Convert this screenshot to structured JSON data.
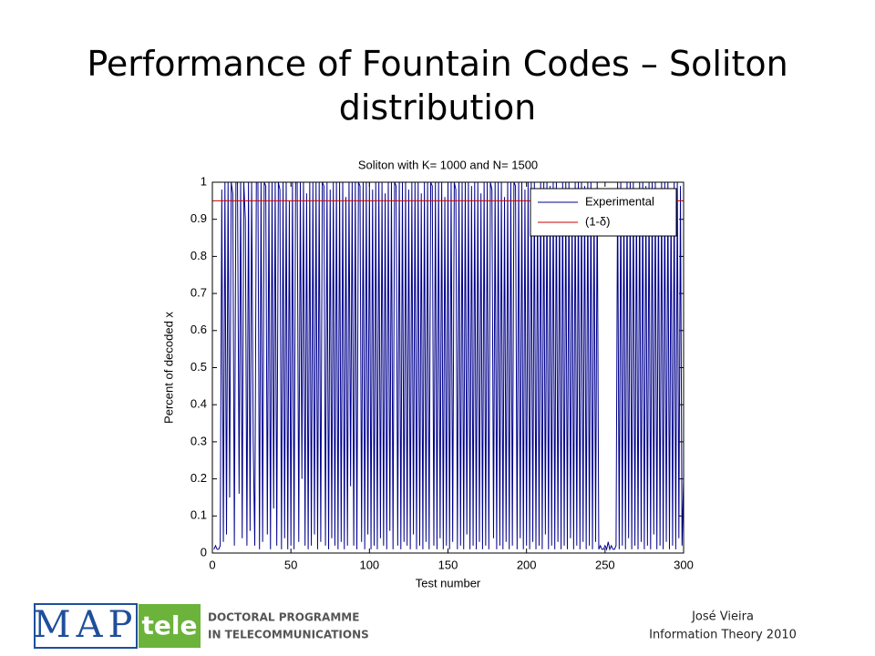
{
  "slide": {
    "title": "Performance of Fountain Codes – Soliton distribution",
    "author": "José Vieira",
    "course": "Information Theory 2010",
    "logo": {
      "map": "MAP",
      "tele": "tele",
      "line1": "DOCTORAL PROGRAMME",
      "line2": "IN TELECOMMUNICATIONS"
    }
  },
  "chart_data": {
    "type": "line",
    "title": "Soliton with K= 1000  and N= 1500",
    "x_label": "Test number",
    "y_label": "Percent of decoded x",
    "xlim": [
      0,
      300
    ],
    "xticks": [
      0,
      50,
      100,
      150,
      200,
      250,
      300
    ],
    "ylim": [
      0,
      1
    ],
    "yticks": [
      0,
      {
        "value": 0.1,
        "label": "0.1"
      },
      {
        "value": 0.2,
        "label": "0.2"
      },
      {
        "value": 0.3,
        "label": "0.3"
      },
      {
        "value": 0.4,
        "label": "0.4"
      },
      {
        "value": 0.5,
        "label": "0.5"
      },
      {
        "value": 0.6,
        "label": "0.6"
      },
      {
        "value": 0.7,
        "label": "0.7"
      },
      {
        "value": 0.8,
        "label": "0.8"
      },
      {
        "value": 0.9,
        "label": "0.9"
      },
      1
    ],
    "legend": "upper right",
    "series": [
      {
        "name": "Experimental",
        "color": "#00008b",
        "x": [
          1,
          2,
          3,
          4,
          5,
          6,
          7,
          8,
          9,
          10,
          11,
          12,
          13,
          14,
          15,
          16,
          17,
          18,
          19,
          20,
          21,
          22,
          23,
          24,
          25,
          26,
          27,
          28,
          29,
          30,
          31,
          32,
          33,
          34,
          35,
          36,
          37,
          38,
          39,
          40,
          41,
          42,
          43,
          44,
          45,
          46,
          47,
          48,
          49,
          50,
          51,
          52,
          53,
          54,
          55,
          56,
          57,
          58,
          59,
          60,
          61,
          62,
          63,
          64,
          65,
          66,
          67,
          68,
          69,
          70,
          71,
          72,
          73,
          74,
          75,
          76,
          77,
          78,
          79,
          80,
          81,
          82,
          83,
          84,
          85,
          86,
          87,
          88,
          89,
          90,
          91,
          92,
          93,
          94,
          95,
          96,
          97,
          98,
          99,
          100,
          101,
          102,
          103,
          104,
          105,
          106,
          107,
          108,
          109,
          110,
          111,
          112,
          113,
          114,
          115,
          116,
          117,
          118,
          119,
          120,
          121,
          122,
          123,
          124,
          125,
          126,
          127,
          128,
          129,
          130,
          131,
          132,
          133,
          134,
          135,
          136,
          137,
          138,
          139,
          140,
          141,
          142,
          143,
          144,
          145,
          146,
          147,
          148,
          149,
          150,
          151,
          152,
          153,
          154,
          155,
          156,
          157,
          158,
          159,
          160,
          161,
          162,
          163,
          164,
          165,
          166,
          167,
          168,
          169,
          170,
          171,
          172,
          173,
          174,
          175,
          176,
          177,
          178,
          179,
          180,
          181,
          182,
          183,
          184,
          185,
          186,
          187,
          188,
          189,
          190,
          191,
          192,
          193,
          194,
          195,
          196,
          197,
          198,
          199,
          200,
          201,
          202,
          203,
          204,
          205,
          206,
          207,
          208,
          209,
          210,
          211,
          212,
          213,
          214,
          215,
          216,
          217,
          218,
          219,
          220,
          221,
          222,
          223,
          224,
          225,
          226,
          227,
          228,
          229,
          230,
          231,
          232,
          233,
          234,
          235,
          236,
          237,
          238,
          239,
          240,
          241,
          242,
          243,
          244,
          245,
          246,
          247,
          248,
          249,
          250,
          251,
          252,
          253,
          254,
          255,
          256,
          257,
          258,
          259,
          260,
          261,
          262,
          263,
          264,
          265,
          266,
          267,
          268,
          269,
          270,
          271,
          272,
          273,
          274,
          275,
          276,
          277,
          278,
          279,
          280,
          281,
          282,
          283,
          284,
          285,
          286,
          287,
          288,
          289,
          290,
          291,
          292,
          293,
          294,
          295,
          296,
          297,
          298,
          299,
          300
        ],
        "values": [
          0.01,
          0.02,
          0.01,
          0.01,
          0.02,
          0.98,
          0.03,
          1,
          0.05,
          1,
          0.15,
          1,
          0.97,
          0.02,
          1,
          1,
          0.16,
          1,
          0.04,
          1,
          0.9,
          0.02,
          1,
          0.06,
          1,
          0.3,
          0.02,
          1,
          1,
          0.01,
          1,
          0.03,
          1,
          0.99,
          0.05,
          1,
          0.01,
          1,
          0.12,
          1,
          0.02,
          1,
          0.98,
          0.01,
          1,
          0.04,
          1,
          0.01,
          0.95,
          0.02,
          1,
          0.01,
          1,
          1,
          0.03,
          1,
          0.2,
          1,
          0.02,
          0.97,
          0.01,
          1,
          0.02,
          1,
          0.05,
          1,
          0.01,
          1,
          0.03,
          1,
          0.99,
          0.02,
          1,
          0.01,
          0.98,
          0.04,
          1,
          0.02,
          1,
          0.01,
          1,
          0.03,
          1,
          0.01,
          0.96,
          0.02,
          1,
          0.18,
          1,
          0.02,
          1,
          0.01,
          1,
          0.99,
          0.03,
          1,
          0.01,
          1,
          0.05,
          1,
          0.01,
          0.98,
          0.02,
          1,
          0.01,
          1,
          0.04,
          1,
          0.02,
          0.97,
          0.01,
          1,
          0.06,
          1,
          0.01,
          1,
          0.99,
          0.02,
          1,
          0.01,
          1,
          0.03,
          1,
          0.02,
          0.98,
          0.01,
          1,
          0.05,
          1,
          0.01,
          1,
          0.02,
          0.97,
          0.01,
          1,
          0.03,
          1,
          0.01,
          1,
          0.99,
          0.02,
          1,
          0.01,
          1,
          0.04,
          1,
          0.01,
          0.96,
          0.02,
          1,
          0.01,
          1,
          0.03,
          1,
          0.98,
          0.01,
          1,
          0.02,
          1,
          0.01,
          1,
          0.05,
          1,
          0.01,
          0.99,
          0.02,
          1,
          0.01,
          1,
          0.03,
          0.97,
          0.01,
          1,
          0.02,
          1,
          0.01,
          1,
          0.98,
          0.04,
          1,
          0.01,
          1,
          0.02,
          1,
          0.01,
          0.96,
          0.03,
          1,
          0.01,
          1,
          0.02,
          1,
          0.99,
          0.01,
          1,
          0.04,
          1,
          0.01,
          0.98,
          0.02,
          1,
          0.01,
          1,
          0.03,
          1,
          0.01,
          0.97,
          0.02,
          1,
          0.01,
          1,
          0.05,
          1,
          0.01,
          0.99,
          0.02,
          1,
          0.01,
          1,
          0.03,
          0.98,
          0.01,
          1,
          0.02,
          1,
          0.01,
          1,
          0.04,
          0.96,
          0.01,
          1,
          0.02,
          1,
          0.01,
          1,
          0.03,
          0.99,
          0.01,
          1,
          0.02,
          1,
          0.01,
          0.97,
          0.03,
          1,
          0.01,
          0.02,
          0.01,
          0.01,
          0.02,
          0.01,
          0.03,
          0.01,
          0.02,
          0.01,
          0.01,
          0.02,
          1,
          0.01,
          1,
          0.02,
          0.98,
          0.01,
          1,
          0.04,
          1,
          0.01,
          1,
          0.02,
          0.97,
          0.01,
          1,
          0.03,
          1,
          0.01,
          0.99,
          0.02,
          1,
          0.01,
          1,
          0.05,
          1,
          0.01,
          0.98,
          0.02,
          1,
          0.01,
          1,
          0.03,
          1,
          0.01,
          0.97,
          0.02,
          1,
          0.01,
          1,
          0.04,
          0.99,
          0.02,
          0.2
        ]
      },
      {
        "name": "(1-δ)",
        "color": "#cc0000",
        "x": [
          0,
          300
        ],
        "values": [
          0.95,
          0.95
        ]
      }
    ]
  }
}
